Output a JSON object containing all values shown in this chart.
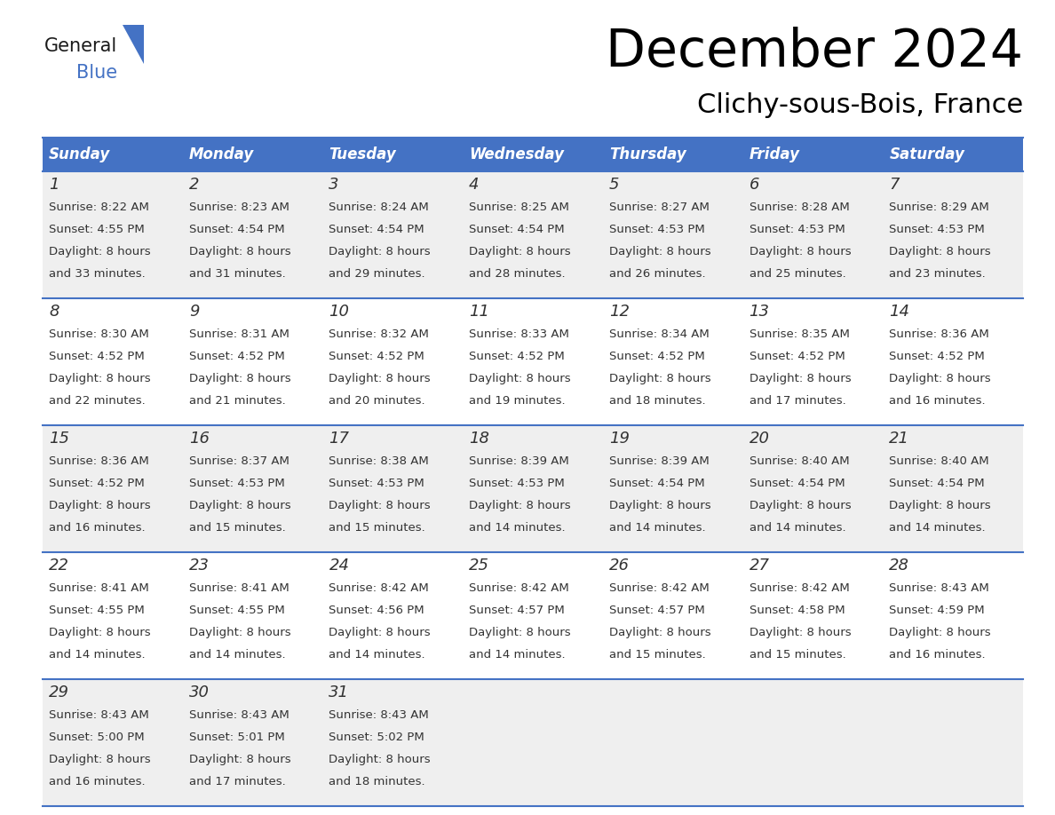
{
  "title": "December 2024",
  "subtitle": "Clichy-sous-Bois, France",
  "header_color": "#4472C4",
  "header_text_color": "#FFFFFF",
  "cell_bg_even": "#EFEFEF",
  "cell_bg_odd": "#FFFFFF",
  "border_color": "#4472C4",
  "text_color": "#333333",
  "day_names": [
    "Sunday",
    "Monday",
    "Tuesday",
    "Wednesday",
    "Thursday",
    "Friday",
    "Saturday"
  ],
  "days": [
    {
      "day": 1,
      "col": 0,
      "row": 0,
      "sunrise": "8:22 AM",
      "sunset": "4:55 PM",
      "daylight_min": "33"
    },
    {
      "day": 2,
      "col": 1,
      "row": 0,
      "sunrise": "8:23 AM",
      "sunset": "4:54 PM",
      "daylight_min": "31"
    },
    {
      "day": 3,
      "col": 2,
      "row": 0,
      "sunrise": "8:24 AM",
      "sunset": "4:54 PM",
      "daylight_min": "29"
    },
    {
      "day": 4,
      "col": 3,
      "row": 0,
      "sunrise": "8:25 AM",
      "sunset": "4:54 PM",
      "daylight_min": "28"
    },
    {
      "day": 5,
      "col": 4,
      "row": 0,
      "sunrise": "8:27 AM",
      "sunset": "4:53 PM",
      "daylight_min": "26"
    },
    {
      "day": 6,
      "col": 5,
      "row": 0,
      "sunrise": "8:28 AM",
      "sunset": "4:53 PM",
      "daylight_min": "25"
    },
    {
      "day": 7,
      "col": 6,
      "row": 0,
      "sunrise": "8:29 AM",
      "sunset": "4:53 PM",
      "daylight_min": "23"
    },
    {
      "day": 8,
      "col": 0,
      "row": 1,
      "sunrise": "8:30 AM",
      "sunset": "4:52 PM",
      "daylight_min": "22"
    },
    {
      "day": 9,
      "col": 1,
      "row": 1,
      "sunrise": "8:31 AM",
      "sunset": "4:52 PM",
      "daylight_min": "21"
    },
    {
      "day": 10,
      "col": 2,
      "row": 1,
      "sunrise": "8:32 AM",
      "sunset": "4:52 PM",
      "daylight_min": "20"
    },
    {
      "day": 11,
      "col": 3,
      "row": 1,
      "sunrise": "8:33 AM",
      "sunset": "4:52 PM",
      "daylight_min": "19"
    },
    {
      "day": 12,
      "col": 4,
      "row": 1,
      "sunrise": "8:34 AM",
      "sunset": "4:52 PM",
      "daylight_min": "18"
    },
    {
      "day": 13,
      "col": 5,
      "row": 1,
      "sunrise": "8:35 AM",
      "sunset": "4:52 PM",
      "daylight_min": "17"
    },
    {
      "day": 14,
      "col": 6,
      "row": 1,
      "sunrise": "8:36 AM",
      "sunset": "4:52 PM",
      "daylight_min": "16"
    },
    {
      "day": 15,
      "col": 0,
      "row": 2,
      "sunrise": "8:36 AM",
      "sunset": "4:52 PM",
      "daylight_min": "16"
    },
    {
      "day": 16,
      "col": 1,
      "row": 2,
      "sunrise": "8:37 AM",
      "sunset": "4:53 PM",
      "daylight_min": "15"
    },
    {
      "day": 17,
      "col": 2,
      "row": 2,
      "sunrise": "8:38 AM",
      "sunset": "4:53 PM",
      "daylight_min": "15"
    },
    {
      "day": 18,
      "col": 3,
      "row": 2,
      "sunrise": "8:39 AM",
      "sunset": "4:53 PM",
      "daylight_min": "14"
    },
    {
      "day": 19,
      "col": 4,
      "row": 2,
      "sunrise": "8:39 AM",
      "sunset": "4:54 PM",
      "daylight_min": "14"
    },
    {
      "day": 20,
      "col": 5,
      "row": 2,
      "sunrise": "8:40 AM",
      "sunset": "4:54 PM",
      "daylight_min": "14"
    },
    {
      "day": 21,
      "col": 6,
      "row": 2,
      "sunrise": "8:40 AM",
      "sunset": "4:54 PM",
      "daylight_min": "14"
    },
    {
      "day": 22,
      "col": 0,
      "row": 3,
      "sunrise": "8:41 AM",
      "sunset": "4:55 PM",
      "daylight_min": "14"
    },
    {
      "day": 23,
      "col": 1,
      "row": 3,
      "sunrise": "8:41 AM",
      "sunset": "4:55 PM",
      "daylight_min": "14"
    },
    {
      "day": 24,
      "col": 2,
      "row": 3,
      "sunrise": "8:42 AM",
      "sunset": "4:56 PM",
      "daylight_min": "14"
    },
    {
      "day": 25,
      "col": 3,
      "row": 3,
      "sunrise": "8:42 AM",
      "sunset": "4:57 PM",
      "daylight_min": "14"
    },
    {
      "day": 26,
      "col": 4,
      "row": 3,
      "sunrise": "8:42 AM",
      "sunset": "4:57 PM",
      "daylight_min": "15"
    },
    {
      "day": 27,
      "col": 5,
      "row": 3,
      "sunrise": "8:42 AM",
      "sunset": "4:58 PM",
      "daylight_min": "15"
    },
    {
      "day": 28,
      "col": 6,
      "row": 3,
      "sunrise": "8:43 AM",
      "sunset": "4:59 PM",
      "daylight_min": "16"
    },
    {
      "day": 29,
      "col": 0,
      "row": 4,
      "sunrise": "8:43 AM",
      "sunset": "5:00 PM",
      "daylight_min": "16"
    },
    {
      "day": 30,
      "col": 1,
      "row": 4,
      "sunrise": "8:43 AM",
      "sunset": "5:01 PM",
      "daylight_min": "17"
    },
    {
      "day": 31,
      "col": 2,
      "row": 4,
      "sunrise": "8:43 AM",
      "sunset": "5:02 PM",
      "daylight_min": "18"
    }
  ]
}
